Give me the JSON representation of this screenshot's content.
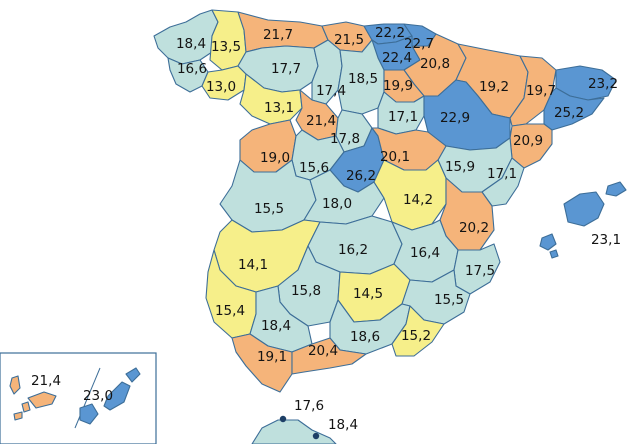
{
  "legend_colors": {
    "low": "#f6ef8a",
    "mid": "#bfe0dd",
    "high": "#f5b47a",
    "top": "#5a96d2",
    "border": "#3d6e98"
  },
  "provinces": [
    {
      "id": "a-coruna",
      "value": "18,4",
      "tier": "mid"
    },
    {
      "id": "lugo",
      "value": "13,5",
      "tier": "low"
    },
    {
      "id": "asturias",
      "value": "21,7",
      "tier": "high"
    },
    {
      "id": "cantabria",
      "value": "21,5",
      "tier": "high"
    },
    {
      "id": "bizkaia",
      "value": "22,2",
      "tier": "top"
    },
    {
      "id": "gipuzkoa",
      "value": "22,7",
      "tier": "top"
    },
    {
      "id": "araba",
      "value": "22,4",
      "tier": "top"
    },
    {
      "id": "navarra",
      "value": "20,8",
      "tier": "high"
    },
    {
      "id": "huesca",
      "value": "19,2",
      "tier": "high"
    },
    {
      "id": "lleida",
      "value": "19,7",
      "tier": "high"
    },
    {
      "id": "girona",
      "value": "23,2",
      "tier": "top"
    },
    {
      "id": "pontevedra",
      "value": "16,6",
      "tier": "mid"
    },
    {
      "id": "ourense",
      "value": "13,0",
      "tier": "low"
    },
    {
      "id": "leon",
      "value": "17,7",
      "tier": "mid"
    },
    {
      "id": "palencia",
      "value": "17,4",
      "tier": "mid"
    },
    {
      "id": "burgos",
      "value": "18,5",
      "tier": "mid"
    },
    {
      "id": "la-rioja",
      "value": "19,9",
      "tier": "high"
    },
    {
      "id": "zaragoza",
      "value": "22,9",
      "tier": "top"
    },
    {
      "id": "barcelona",
      "value": "25,2",
      "tier": "top"
    },
    {
      "id": "zamora",
      "value": "13,1",
      "tier": "low"
    },
    {
      "id": "valladolid",
      "value": "21,4",
      "tier": "high"
    },
    {
      "id": "soria",
      "value": "17,1",
      "tier": "mid"
    },
    {
      "id": "tarragona",
      "value": "20,9",
      "tier": "high"
    },
    {
      "id": "segovia",
      "value": "17,8",
      "tier": "mid"
    },
    {
      "id": "salamanca",
      "value": "19,0",
      "tier": "high"
    },
    {
      "id": "avila",
      "value": "15,6",
      "tier": "mid"
    },
    {
      "id": "madrid",
      "value": "26,2",
      "tier": "top"
    },
    {
      "id": "guadalajara",
      "value": "20,1",
      "tier": "high"
    },
    {
      "id": "teruel",
      "value": "15,9",
      "tier": "mid"
    },
    {
      "id": "castellon",
      "value": "17,1",
      "tier": "mid"
    },
    {
      "id": "caceres",
      "value": "15,5",
      "tier": "mid"
    },
    {
      "id": "toledo",
      "value": "18,0",
      "tier": "mid"
    },
    {
      "id": "cuenca",
      "value": "14,2",
      "tier": "low"
    },
    {
      "id": "valencia",
      "value": "20,2",
      "tier": "high"
    },
    {
      "id": "baleares",
      "value": "23,1",
      "tier": "top"
    },
    {
      "id": "badajoz",
      "value": "14,1",
      "tier": "low"
    },
    {
      "id": "ciudad-real",
      "value": "16,2",
      "tier": "mid"
    },
    {
      "id": "albacete",
      "value": "16,4",
      "tier": "mid"
    },
    {
      "id": "alicante",
      "value": "17,5",
      "tier": "mid"
    },
    {
      "id": "cordoba",
      "value": "15,8",
      "tier": "mid"
    },
    {
      "id": "jaen",
      "value": "14,5",
      "tier": "low"
    },
    {
      "id": "murcia",
      "value": "15,5",
      "tier": "mid"
    },
    {
      "id": "huelva",
      "value": "15,4",
      "tier": "low"
    },
    {
      "id": "sevilla",
      "value": "18,4",
      "tier": "mid"
    },
    {
      "id": "granada",
      "value": "18,6",
      "tier": "mid"
    },
    {
      "id": "almeria",
      "value": "15,2",
      "tier": "low"
    },
    {
      "id": "cadiz",
      "value": "19,1",
      "tier": "high"
    },
    {
      "id": "malaga",
      "value": "20,4",
      "tier": "high"
    },
    {
      "id": "las-palmas",
      "value": "21,4",
      "tier": "high"
    },
    {
      "id": "santa-cruz",
      "value": "23,0",
      "tier": "top"
    },
    {
      "id": "ceuta",
      "value": "17,6",
      "tier": "mid"
    },
    {
      "id": "melilla",
      "value": "18,4",
      "tier": "mid"
    }
  ]
}
